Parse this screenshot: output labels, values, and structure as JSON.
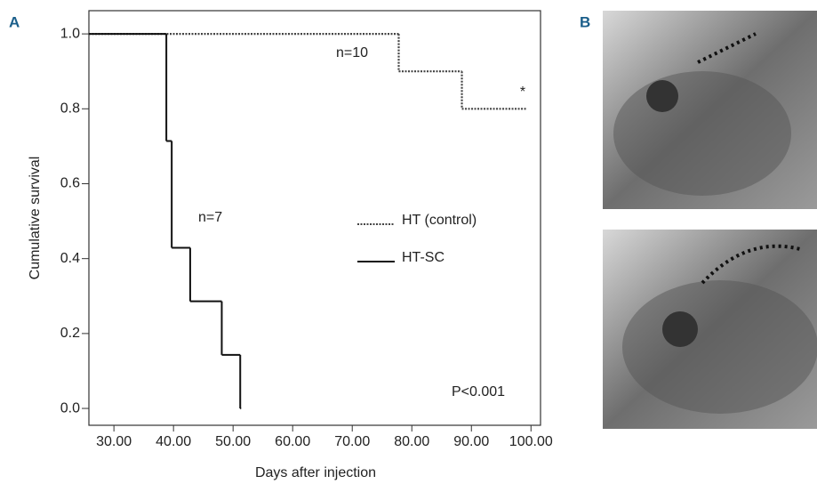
{
  "chart_data": {
    "type": "step",
    "panel_labels": [
      "A",
      "B"
    ],
    "x_label": "Days after injection",
    "y_label": "Cumulative survival",
    "xlim": [
      25.8,
      101.6
    ],
    "ylim": [
      -0.045,
      1.062
    ],
    "xticks": [
      {
        "value": 30,
        "label": "30.00"
      },
      {
        "value": 40,
        "label": "40.00"
      },
      {
        "value": 50,
        "label": "50.00"
      },
      {
        "value": 60,
        "label": "60.00"
      },
      {
        "value": 70,
        "label": "70.00"
      },
      {
        "value": 80,
        "label": "80.00"
      },
      {
        "value": 90,
        "label": "90.00"
      },
      {
        "value": 100,
        "label": "100.00"
      }
    ],
    "yticks": [
      {
        "value": 0,
        "label": "0.0"
      },
      0.2,
      0.4,
      0.6,
      0.8,
      {
        "value": 1,
        "label": "1.0"
      }
    ],
    "series": [
      {
        "name": "HT (control)",
        "color": "#444444",
        "dash": true,
        "x": [
          25.8,
          77.8,
          88.4,
          99
        ],
        "values": [
          1.0,
          0.9,
          0.8,
          0.8
        ]
      },
      {
        "name": "HT-SC",
        "color": "#111111",
        "dash": false,
        "x": [
          25.8,
          38.8,
          39.7,
          42.8,
          48.1,
          51.2
        ],
        "values": [
          1.0,
          0.714,
          0.429,
          0.286,
          0.143,
          0.0
        ]
      }
    ],
    "annotations": [
      "n=10",
      "n=7",
      "*",
      "P<0.001"
    ]
  }
}
